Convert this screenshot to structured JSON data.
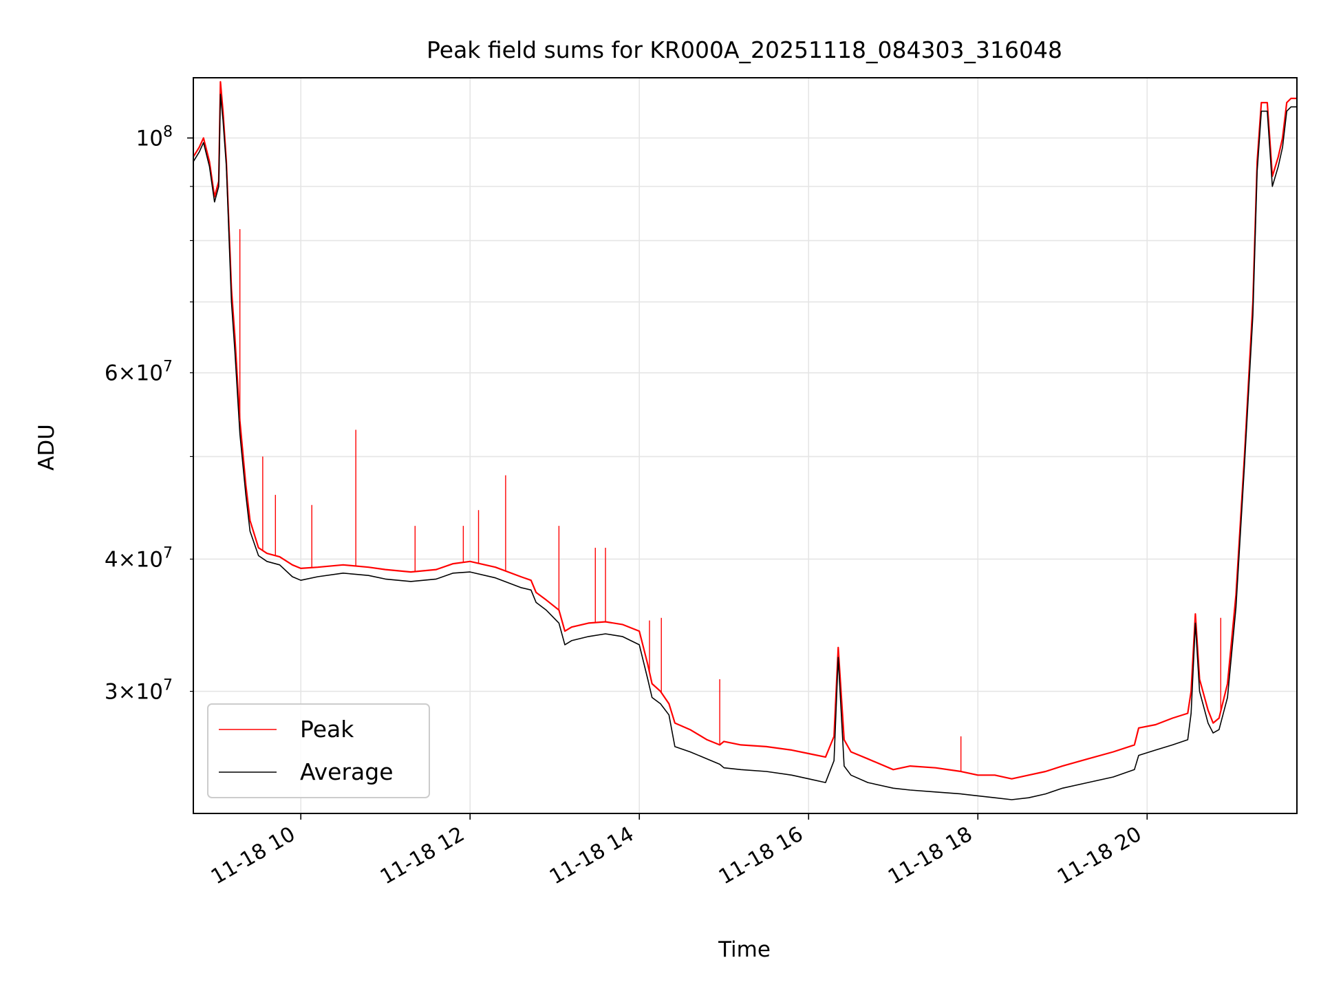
{
  "chart_data": {
    "type": "line",
    "title": "Peak field sums for KR000A_20251118_084303_316048",
    "xlabel": "Time",
    "ylabel": "ADU",
    "yscale": "log",
    "xlim": [
      8.73,
      21.77
    ],
    "ylim": [
      23000000,
      114000000
    ],
    "grid": true,
    "legend_position": "lower-left",
    "x_ticks": [
      {
        "value": 10,
        "label": "11-18 10"
      },
      {
        "value": 12,
        "label": "11-18 12"
      },
      {
        "value": 14,
        "label": "11-18 14"
      },
      {
        "value": 16,
        "label": "11-18 16"
      },
      {
        "value": 18,
        "label": "11-18 18"
      },
      {
        "value": 20,
        "label": "11-18 20"
      }
    ],
    "y_ticks_major": [
      {
        "value": 100000000,
        "base": "10",
        "exp": "8"
      }
    ],
    "y_ticks_minor": [
      {
        "value": 30000000,
        "mant": "3",
        "exp": "7"
      },
      {
        "value": 40000000,
        "mant": "4",
        "exp": "7"
      },
      {
        "value": 60000000,
        "mant": "6",
        "exp": "7"
      }
    ],
    "y_grid_extra": [
      50000000,
      70000000,
      80000000,
      90000000
    ],
    "series": [
      {
        "name": "Peak",
        "color": "#ff0000",
        "x": [
          8.73,
          8.8,
          8.85,
          8.92,
          8.98,
          9.03,
          9.05,
          9.08,
          9.12,
          9.18,
          9.22,
          9.28,
          9.35,
          9.4,
          9.5,
          9.6,
          9.75,
          9.9,
          10.0,
          10.2,
          10.5,
          10.8,
          11.0,
          11.3,
          11.6,
          11.8,
          12.0,
          12.3,
          12.6,
          12.72,
          12.78,
          12.9,
          13.05,
          13.12,
          13.2,
          13.4,
          13.6,
          13.8,
          14.0,
          14.1,
          14.15,
          14.25,
          14.35,
          14.42,
          14.6,
          14.8,
          14.95,
          15.0,
          15.2,
          15.5,
          15.8,
          16.0,
          16.2,
          16.3,
          16.35,
          16.42,
          16.5,
          16.7,
          17.0,
          17.2,
          17.5,
          17.8,
          18.0,
          18.2,
          18.4,
          18.6,
          18.8,
          19.0,
          19.3,
          19.6,
          19.85,
          19.9,
          20.1,
          20.3,
          20.48,
          20.52,
          20.57,
          20.62,
          20.72,
          20.78,
          20.85,
          20.95,
          21.05,
          21.15,
          21.25,
          21.3,
          21.35,
          21.42,
          21.48,
          21.55,
          21.6,
          21.65,
          21.7,
          21.77
        ],
        "values": [
          96000000,
          98000000,
          100000000,
          95000000,
          88000000,
          91000000,
          113000000,
          106000000,
          95000000,
          72000000,
          65000000,
          54000000,
          47000000,
          43500000,
          41000000,
          40500000,
          40200000,
          39500000,
          39200000,
          39300000,
          39500000,
          39300000,
          39100000,
          38900000,
          39100000,
          39600000,
          39800000,
          39300000,
          38500000,
          38200000,
          37200000,
          36600000,
          35800000,
          34200000,
          34500000,
          34800000,
          34900000,
          34700000,
          34200000,
          31800000,
          30500000,
          30000000,
          29200000,
          28000000,
          27600000,
          27000000,
          26700000,
          26900000,
          26700000,
          26600000,
          26400000,
          26200000,
          26000000,
          27200000,
          33000000,
          27000000,
          26300000,
          25900000,
          25300000,
          25500000,
          25400000,
          25200000,
          25000000,
          25000000,
          24800000,
          25000000,
          25200000,
          25500000,
          25900000,
          26300000,
          26700000,
          27700000,
          27900000,
          28300000,
          28600000,
          30000000,
          35500000,
          30800000,
          28800000,
          28000000,
          28300000,
          30500000,
          37000000,
          50000000,
          70000000,
          95000000,
          108000000,
          108000000,
          92000000,
          96000000,
          100000000,
          108000000,
          109000000,
          109000000
        ]
      },
      {
        "name": "Average",
        "color": "#000000",
        "x": [
          8.73,
          8.8,
          8.85,
          8.92,
          8.98,
          9.03,
          9.05,
          9.08,
          9.12,
          9.18,
          9.22,
          9.28,
          9.35,
          9.4,
          9.5,
          9.6,
          9.75,
          9.9,
          10.0,
          10.2,
          10.5,
          10.8,
          11.0,
          11.3,
          11.6,
          11.8,
          12.0,
          12.3,
          12.6,
          12.72,
          12.78,
          12.9,
          13.05,
          13.12,
          13.2,
          13.4,
          13.6,
          13.8,
          14.0,
          14.1,
          14.15,
          14.25,
          14.35,
          14.42,
          14.6,
          14.8,
          14.95,
          15.0,
          15.2,
          15.5,
          15.8,
          16.0,
          16.2,
          16.3,
          16.35,
          16.42,
          16.5,
          16.7,
          17.0,
          17.2,
          17.5,
          17.8,
          18.0,
          18.2,
          18.4,
          18.6,
          18.8,
          19.0,
          19.3,
          19.6,
          19.85,
          19.9,
          20.1,
          20.3,
          20.48,
          20.52,
          20.57,
          20.62,
          20.72,
          20.78,
          20.85,
          20.95,
          21.05,
          21.15,
          21.25,
          21.3,
          21.35,
          21.42,
          21.48,
          21.55,
          21.6,
          21.65,
          21.7,
          21.77
        ],
        "values": [
          95000000,
          97000000,
          99000000,
          94000000,
          87000000,
          90000000,
          110000000,
          104000000,
          94000000,
          70000000,
          63000000,
          52500000,
          46000000,
          42500000,
          40300000,
          39800000,
          39500000,
          38500000,
          38200000,
          38500000,
          38800000,
          38600000,
          38300000,
          38100000,
          38300000,
          38800000,
          38900000,
          38400000,
          37600000,
          37400000,
          36400000,
          35800000,
          34800000,
          33200000,
          33500000,
          33800000,
          34000000,
          33800000,
          33200000,
          30800000,
          29600000,
          29200000,
          28500000,
          26600000,
          26300000,
          25900000,
          25600000,
          25400000,
          25300000,
          25200000,
          25000000,
          24800000,
          24600000,
          25800000,
          32300000,
          25500000,
          25000000,
          24600000,
          24300000,
          24200000,
          24100000,
          24000000,
          23900000,
          23800000,
          23700000,
          23800000,
          24000000,
          24300000,
          24600000,
          24900000,
          25300000,
          26100000,
          26400000,
          26700000,
          27000000,
          28600000,
          34800000,
          30000000,
          28000000,
          27400000,
          27600000,
          29600000,
          36000000,
          49000000,
          68000000,
          93000000,
          106000000,
          106000000,
          90000000,
          94000000,
          98000000,
          106000000,
          107000000,
          107000000
        ]
      }
    ],
    "spikes": {
      "series": "Peak",
      "points": [
        {
          "x": 9.28,
          "y": 82000000
        },
        {
          "x": 9.55,
          "y": 50000000
        },
        {
          "x": 9.7,
          "y": 46000000
        },
        {
          "x": 10.13,
          "y": 45000000
        },
        {
          "x": 10.65,
          "y": 53000000
        },
        {
          "x": 11.35,
          "y": 43000000
        },
        {
          "x": 11.92,
          "y": 43000000
        },
        {
          "x": 12.1,
          "y": 44500000
        },
        {
          "x": 12.42,
          "y": 48000000
        },
        {
          "x": 13.05,
          "y": 43000000
        },
        {
          "x": 13.48,
          "y": 41000000
        },
        {
          "x": 13.6,
          "y": 41000000
        },
        {
          "x": 14.12,
          "y": 35000000
        },
        {
          "x": 14.26,
          "y": 35200000
        },
        {
          "x": 14.95,
          "y": 30800000
        },
        {
          "x": 17.8,
          "y": 27200000
        },
        {
          "x": 20.87,
          "y": 35200000
        }
      ]
    }
  }
}
